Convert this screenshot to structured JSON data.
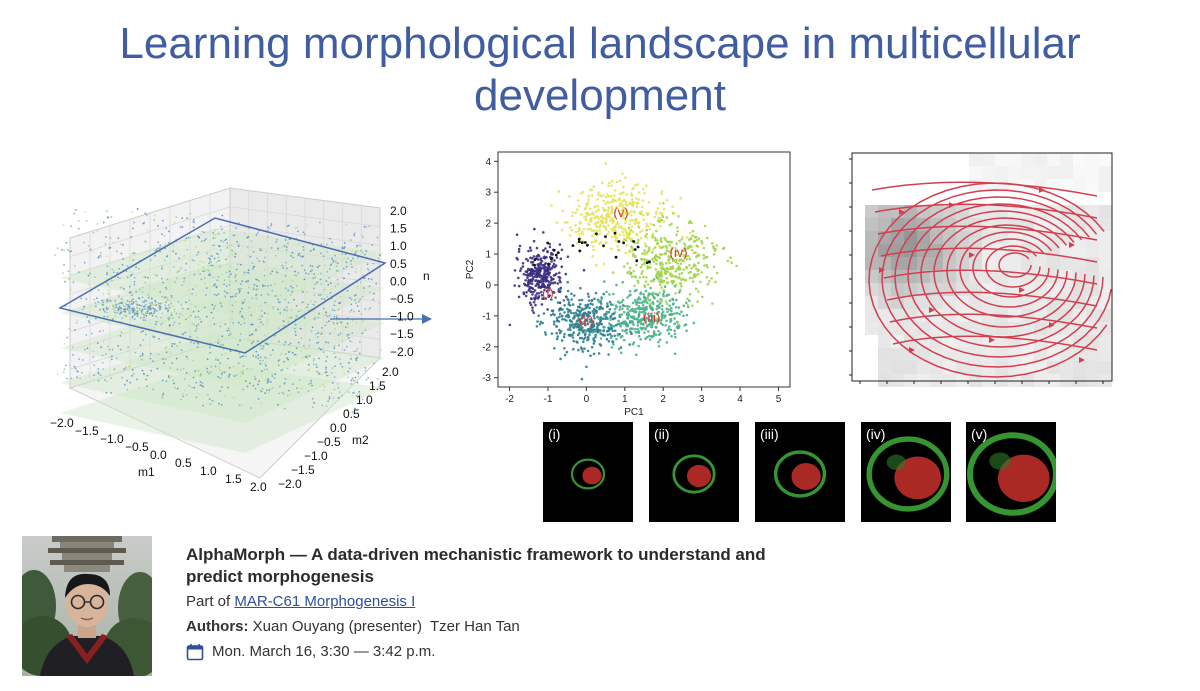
{
  "slide": {
    "title_line1": "Learning morphological landscape in multicellular",
    "title_line2": "development"
  },
  "figure3d": {
    "z_label": "n",
    "x_label": "m1",
    "y_label": "m2",
    "x_ticks": [
      "−2.0",
      "−1.5",
      "−1.0",
      "−0.5",
      "0.0",
      "0.5",
      "1.0",
      "1.5",
      "2.0"
    ],
    "y_ticks": [
      "−2.0",
      "−1.5",
      "−1.0",
      "−0.5",
      "0.0",
      "0.5",
      "1.0",
      "1.5",
      "2.0"
    ],
    "z_ticks": [
      "−2.0",
      "−1.5",
      "−1.0",
      "−0.5",
      "0.0",
      "0.5",
      "1.0",
      "1.5",
      "2.0"
    ],
    "accent_color": "#4a6fb0",
    "plane_color": "#cfe6c8"
  },
  "chart_data": {
    "type": "scatter",
    "xlabel": "PC1",
    "ylabel": "PC2",
    "xlim": [
      -2.3,
      5.3
    ],
    "ylim": [
      -3.3,
      4.3
    ],
    "x_ticks": [
      -2,
      -1,
      0,
      1,
      2,
      3,
      4,
      5
    ],
    "y_ticks": [
      -3,
      -2,
      -1,
      0,
      1,
      2,
      3,
      4
    ],
    "clusters": [
      {
        "label": "(i)",
        "center": [
          -1.2,
          0.3
        ],
        "spread": [
          0.45,
          0.7
        ],
        "color": "#3b2f7f"
      },
      {
        "label": "(ii)",
        "center": [
          0.0,
          -1.2
        ],
        "spread": [
          0.8,
          0.7
        ],
        "color": "#2c7f8c"
      },
      {
        "label": "(iii)",
        "center": [
          1.5,
          -1.0
        ],
        "spread": [
          0.8,
          0.7
        ],
        "color": "#4bb38a"
      },
      {
        "label": "(iv)",
        "center": [
          2.2,
          0.8
        ],
        "spread": [
          0.9,
          1.0
        ],
        "color": "#a3d44c"
      },
      {
        "label": "(v)",
        "center": [
          0.8,
          2.2
        ],
        "spread": [
          1.0,
          0.8
        ],
        "color": "#e4e35a"
      }
    ],
    "annotations": [
      {
        "text": "(v)",
        "x": 0.9,
        "y": 2.2
      },
      {
        "text": "(iv)",
        "x": 2.4,
        "y": 0.9
      },
      {
        "text": "(i)",
        "x": -1.0,
        "y": -0.4
      },
      {
        "text": "(ii)",
        "x": 0.0,
        "y": -1.3
      },
      {
        "text": "(iii)",
        "x": 1.7,
        "y": -1.2
      }
    ],
    "annotation_color": "#d23a3a"
  },
  "streamplot": {
    "line_color": "#d23f50"
  },
  "panels": [
    {
      "label": "(i)",
      "size": 0.1
    },
    {
      "label": "(ii)",
      "size": 0.17
    },
    {
      "label": "(iii)",
      "size": 0.24
    },
    {
      "label": "(iv)",
      "size": 0.48
    },
    {
      "label": "(v)",
      "size": 0.55
    }
  ],
  "talk": {
    "title": "AlphaMorph — A data-driven mechanistic framework to understand and predict morphogenesis",
    "part_of_prefix": "Part of",
    "session_link": "MAR-C61 Morphogenesis I",
    "authors_label": "Authors:",
    "authors": "Xuan Ouyang (presenter)  Tzer Han Tan",
    "date": "Mon. March 16, 3:30 — 3:42 p.m."
  }
}
